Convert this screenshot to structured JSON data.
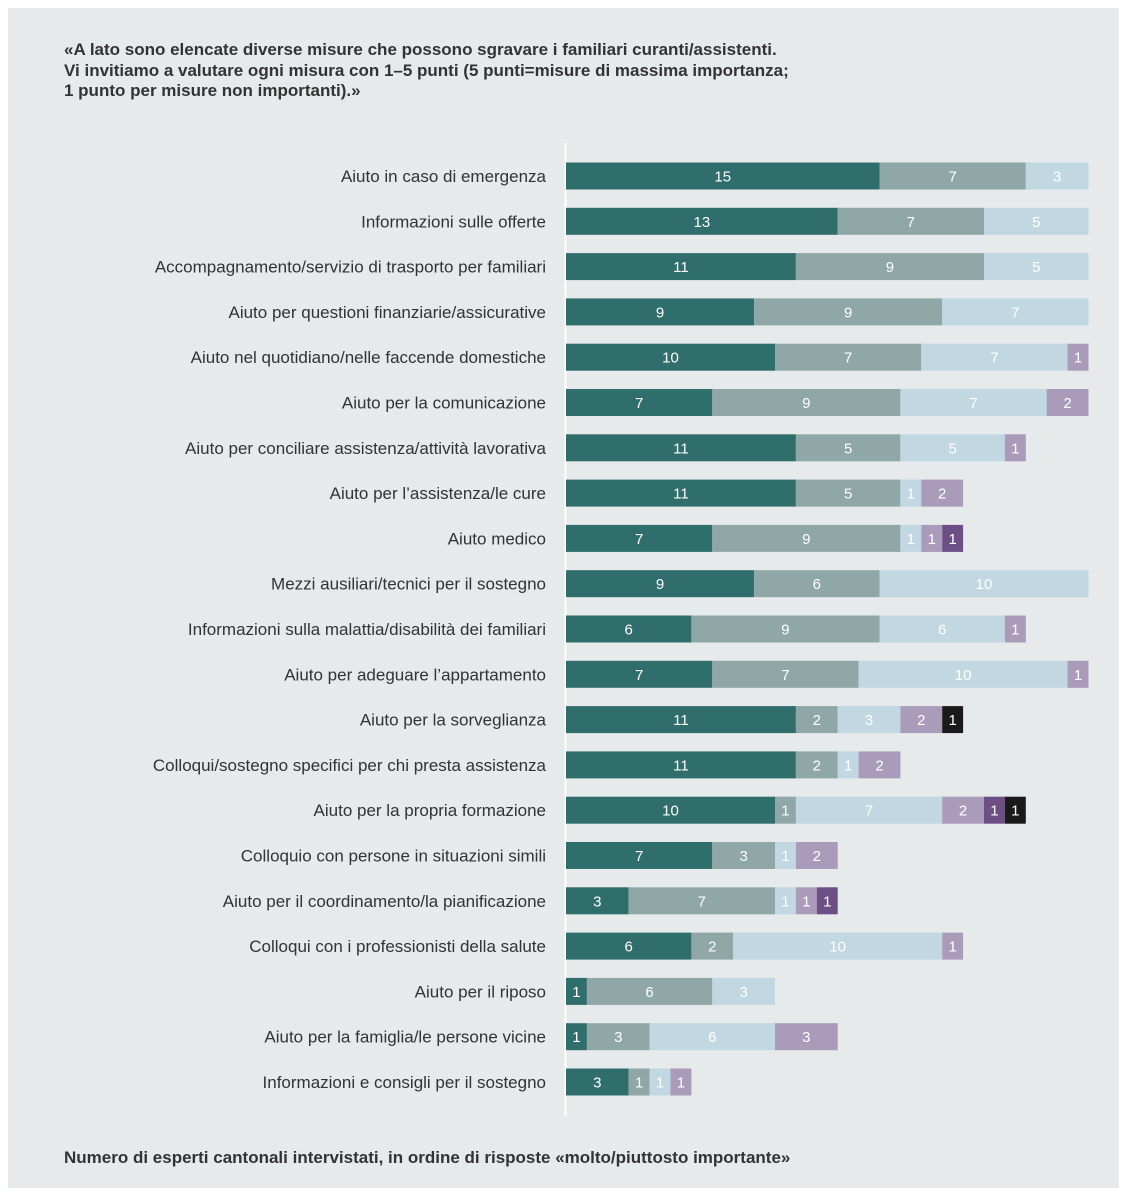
{
  "title": "«A lato sono elencate diverse misure che possono sgravare i familiari curanti/assistenti.\nVi invitiamo a valutare ogni misura con 1–5 punti (5 punti=misure di massima importanza;\n1 punto per misure non importanti).»",
  "footnote": "Numero di esperti cantonali intervistati, in ordine di risposte «molto/piuttosto importante»",
  "colors": {
    "background": "#e6eaea",
    "axis": "#ffffff",
    "segments": [
      "#2f6e6c",
      "#8fa7a7",
      "#c1d7e2",
      "#a99bb9",
      "#6c4f84",
      "#1a1a1a"
    ],
    "value_labels": "#ffffff"
  },
  "chart_data": {
    "type": "bar",
    "orientation": "horizontal",
    "stacked": true,
    "xlim": [
      0,
      25
    ],
    "grid": false,
    "legend": "none",
    "categories": [
      "Aiuto in caso di emergenza",
      "Informazioni sulle offerte",
      "Accompagnamento/servizio di trasporto per familiari",
      "Aiuto per questioni finanziarie/assicurative",
      "Aiuto nel quotidiano/nelle faccende domestiche",
      "Aiuto per la comunicazione",
      "Aiuto per conciliare assistenza/attività lavorativa",
      "Aiuto per l’assistenza/le cure",
      "Aiuto medico",
      "Mezzi ausiliari/tecnici per il sostegno",
      "Informazioni sulla malattia/disabilità dei familiari",
      "Aiuto per adeguare l’appartamento",
      "Aiuto per la sorveglianza",
      "Colloqui/sostegno specifici per chi presta assistenza",
      "Aiuto per la propria formazione",
      "Colloquio con persone in situazioni simili",
      "Aiuto per il coordinamento/la pianificazione",
      "Colloqui con i professionisti della salute",
      "Aiuto per il riposo",
      "Aiuto per la famiglia/le persone vicine",
      "Informazioni e consigli per il sostegno"
    ],
    "series": [
      {
        "values": [
          15,
          13,
          11,
          9,
          10,
          7,
          11,
          11,
          7,
          9,
          6,
          7,
          11,
          11,
          10,
          7,
          3,
          6,
          1,
          1,
          3
        ]
      },
      {
        "values": [
          7,
          7,
          9,
          9,
          7,
          9,
          5,
          5,
          9,
          6,
          9,
          7,
          2,
          2,
          1,
          3,
          7,
          2,
          6,
          3,
          1
        ]
      },
      {
        "values": [
          3,
          5,
          5,
          7,
          7,
          7,
          5,
          1,
          1,
          10,
          6,
          10,
          3,
          1,
          7,
          1,
          1,
          10,
          3,
          6,
          1
        ]
      },
      {
        "values": [
          0,
          0,
          0,
          0,
          1,
          2,
          1,
          2,
          1,
          0,
          1,
          1,
          2,
          2,
          2,
          2,
          1,
          1,
          0,
          3,
          1
        ]
      },
      {
        "values": [
          0,
          0,
          0,
          0,
          0,
          0,
          0,
          0,
          1,
          0,
          0,
          0,
          0,
          0,
          1,
          0,
          1,
          0,
          0,
          0,
          0
        ]
      },
      {
        "values": [
          0,
          0,
          0,
          0,
          0,
          0,
          0,
          0,
          0,
          0,
          0,
          0,
          1,
          0,
          1,
          0,
          0,
          0,
          0,
          0,
          0
        ]
      }
    ]
  }
}
